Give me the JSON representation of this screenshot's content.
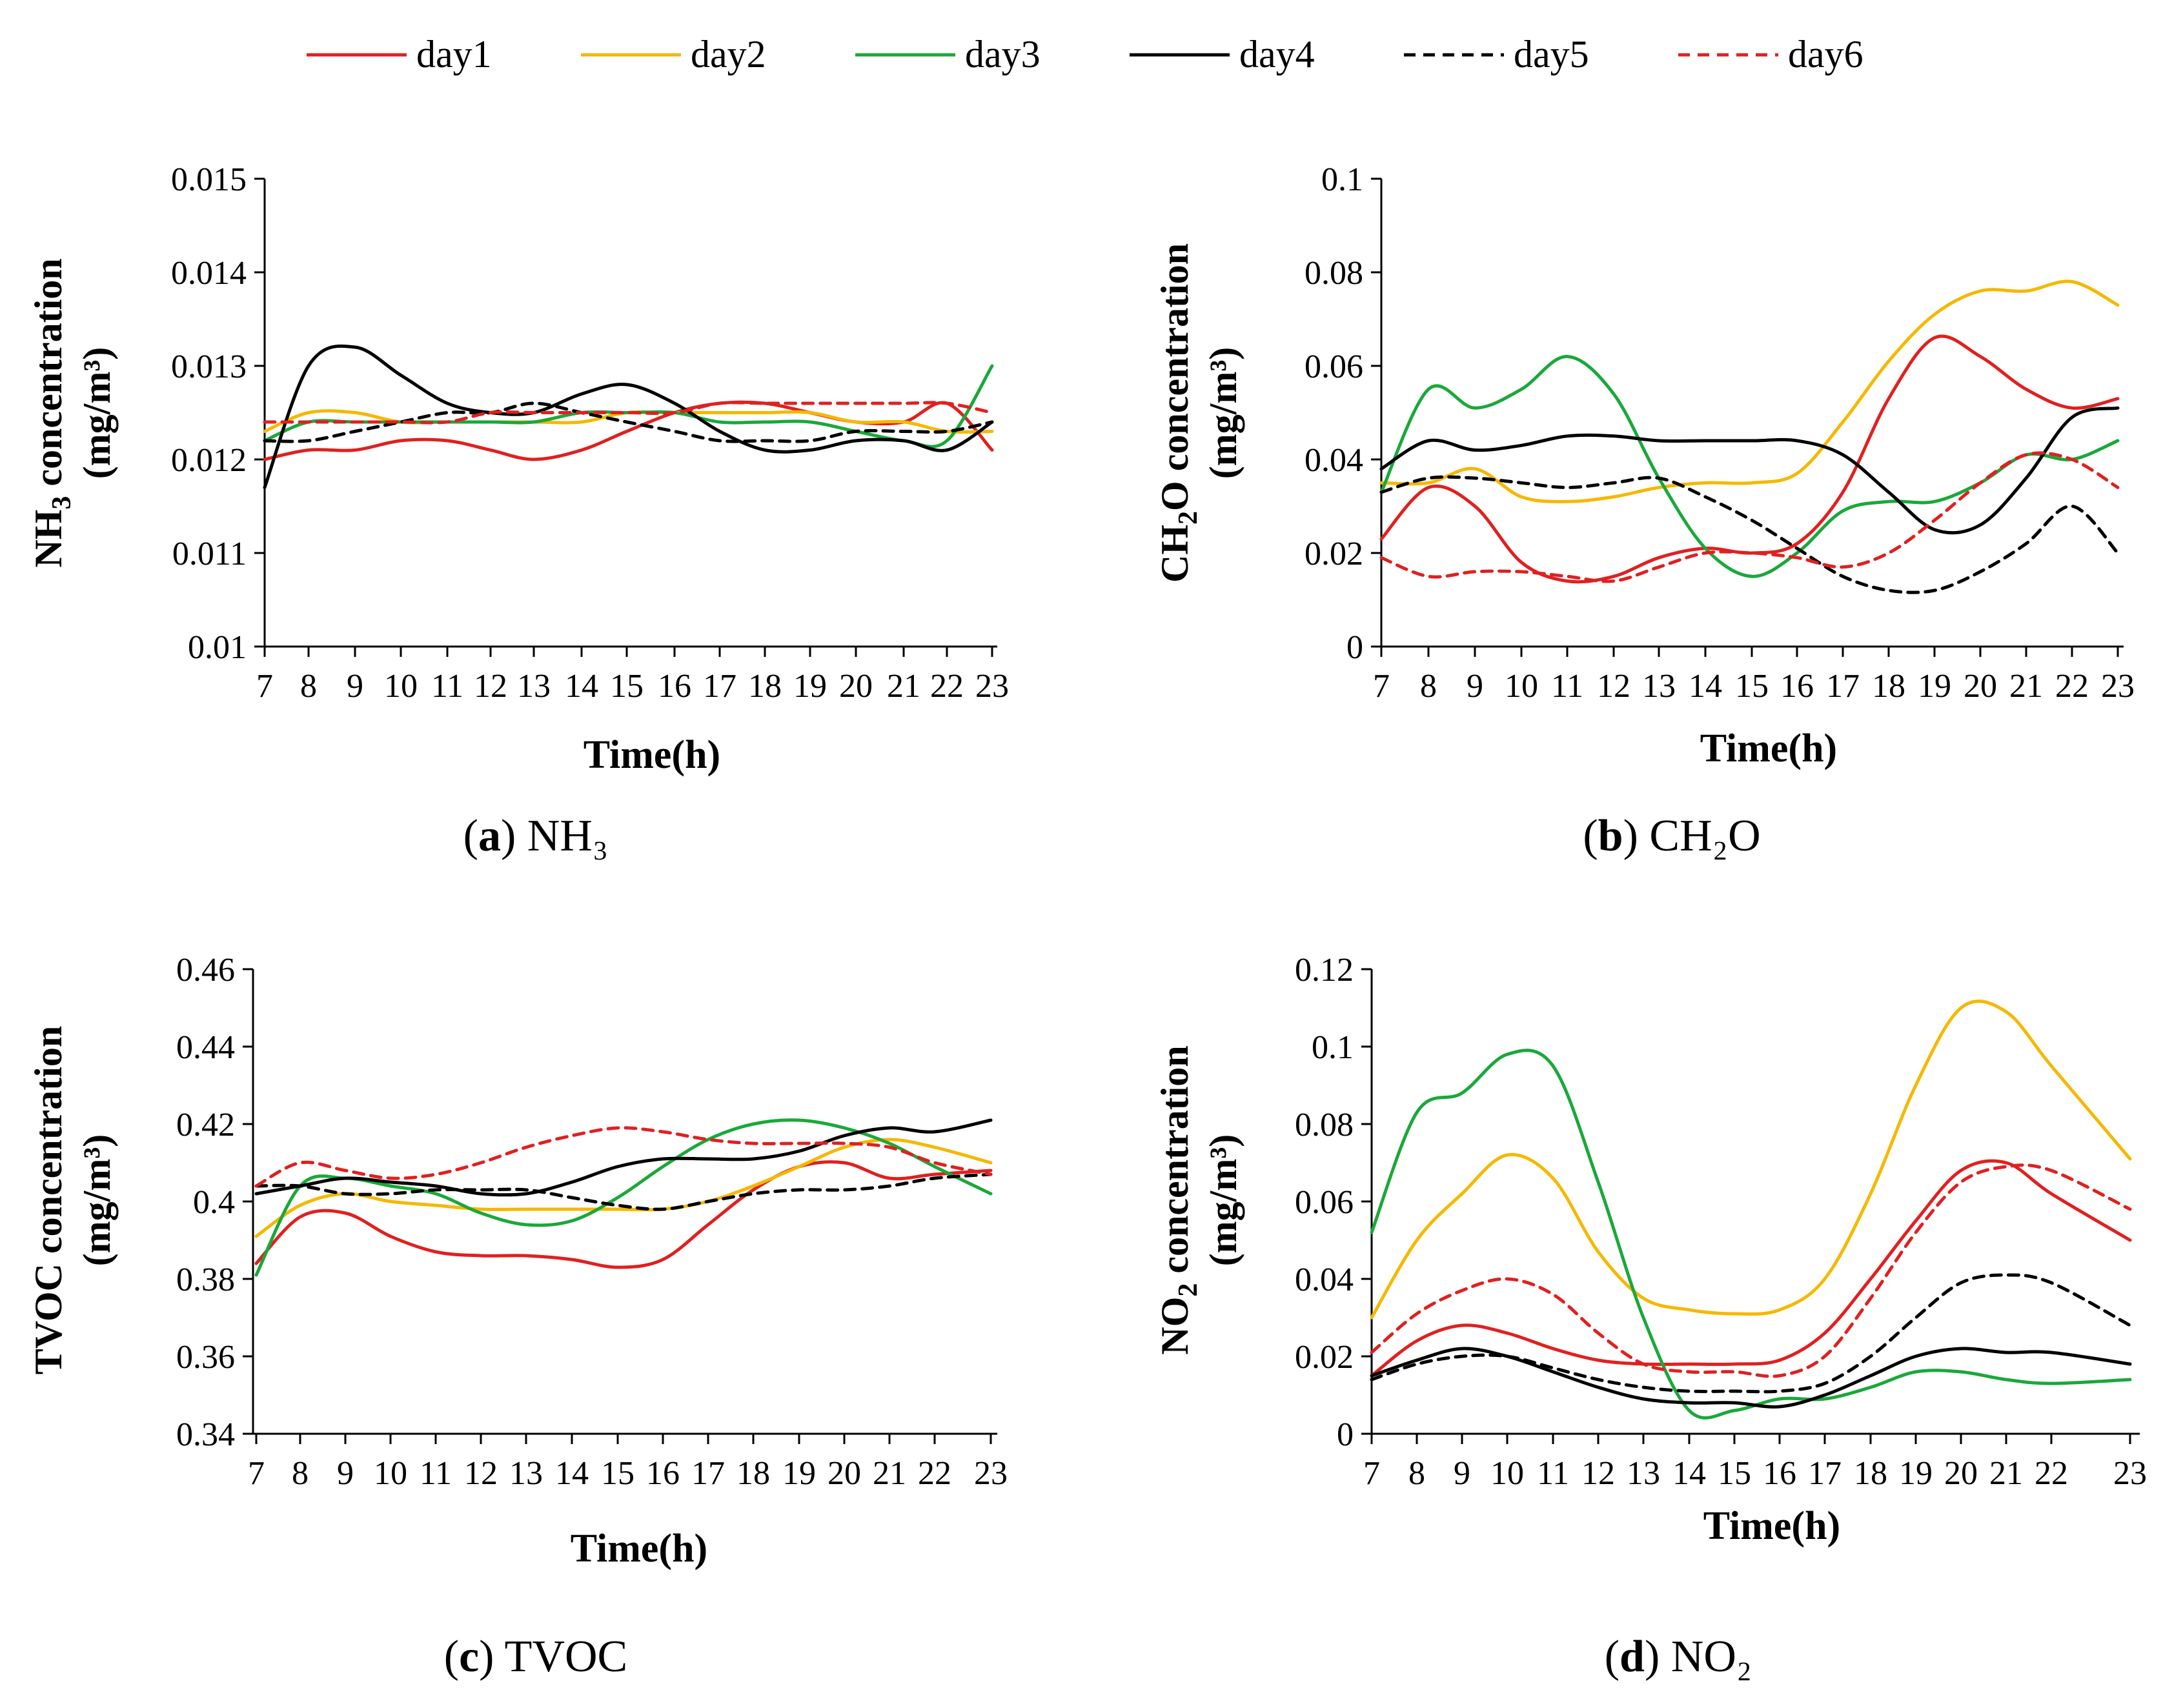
{
  "legend": [
    {
      "name": "day1",
      "color": "#e02020",
      "dash": false
    },
    {
      "name": "day2",
      "color": "#f5b800",
      "dash": false
    },
    {
      "name": "day3",
      "color": "#1aa83a",
      "dash": false
    },
    {
      "name": "day4",
      "color": "#000000",
      "dash": false
    },
    {
      "name": "day5",
      "color": "#000000",
      "dash": true
    },
    {
      "name": "day6",
      "color": "#e02020",
      "dash": true
    }
  ],
  "chart_data": [
    {
      "id": "a",
      "type": "line",
      "caption_letter": "a",
      "caption_text": "NH₃",
      "ylabel": "NH₃ concentration (mg/m³)",
      "ylabel_main": "NH",
      "ylabel_sub": "3",
      "ylabel_rest": " concentration",
      "ylabel_unit": "(mg/m³)",
      "xlabel": "Time(h)",
      "ylim": [
        0.01,
        0.015
      ],
      "yticks": [
        "0.01",
        "0.011",
        "0.012",
        "0.013",
        "0.014",
        "0.015"
      ],
      "xrange": [
        7,
        23
      ],
      "x": [
        7,
        8,
        9,
        10,
        11,
        12,
        13,
        14,
        15,
        16,
        17,
        18,
        19,
        20,
        21,
        22,
        23
      ],
      "series": [
        {
          "name": "day1",
          "values": [
            0.012,
            0.0121,
            0.0121,
            0.0122,
            0.0122,
            0.0121,
            0.012,
            0.0121,
            0.0123,
            0.0125,
            0.0126,
            0.0126,
            0.0125,
            0.0124,
            0.0124,
            0.0126,
            0.0121
          ]
        },
        {
          "name": "day2",
          "values": [
            0.0123,
            0.0125,
            0.0125,
            0.0124,
            0.0124,
            0.0124,
            0.0124,
            0.0124,
            0.0125,
            0.0125,
            0.0125,
            0.0125,
            0.0125,
            0.0124,
            0.0124,
            0.0123,
            0.0123
          ]
        },
        {
          "name": "day3",
          "values": [
            0.0122,
            0.0124,
            0.0124,
            0.0124,
            0.0124,
            0.0124,
            0.0124,
            0.0125,
            0.0125,
            0.0125,
            0.0124,
            0.0124,
            0.0124,
            0.0123,
            0.0122,
            0.0122,
            0.013
          ]
        },
        {
          "name": "day4",
          "values": [
            0.0117,
            0.013,
            0.0132,
            0.0129,
            0.0126,
            0.0125,
            0.0125,
            0.0127,
            0.0128,
            0.0126,
            0.0123,
            0.0121,
            0.0121,
            0.0122,
            0.0122,
            0.0121,
            0.0124
          ]
        },
        {
          "name": "day5",
          "values": [
            0.0122,
            0.0122,
            0.0123,
            0.0124,
            0.0125,
            0.0125,
            0.0126,
            0.0125,
            0.0124,
            0.0123,
            0.0122,
            0.0122,
            0.0122,
            0.0123,
            0.0123,
            0.0123,
            0.0124
          ]
        },
        {
          "name": "day6",
          "values": [
            0.0124,
            0.0124,
            0.0124,
            0.0124,
            0.0124,
            0.0125,
            0.0125,
            0.0125,
            0.0125,
            0.0125,
            0.0126,
            0.0126,
            0.0126,
            0.0126,
            0.0126,
            0.0126,
            0.0125
          ]
        }
      ]
    },
    {
      "id": "b",
      "type": "line",
      "caption_letter": "b",
      "caption_text": "CH₂O",
      "ylabel": "CH₂O concentration (mg/m³)",
      "ylabel_main": "CH",
      "ylabel_sub": "2",
      "ylabel_rest": "O concentration",
      "ylabel_unit": "(mg/m³)",
      "xlabel": "Time(h)",
      "ylim": [
        0,
        0.1
      ],
      "yticks": [
        "0",
        "0.02",
        "0.04",
        "0.06",
        "0.08",
        "0.1"
      ],
      "xrange": [
        7,
        23
      ],
      "x": [
        7,
        8,
        9,
        10,
        11,
        12,
        13,
        14,
        15,
        16,
        17,
        18,
        19,
        20,
        21,
        22,
        23
      ],
      "series": [
        {
          "name": "day1",
          "values": [
            0.023,
            0.034,
            0.03,
            0.018,
            0.014,
            0.015,
            0.019,
            0.021,
            0.02,
            0.022,
            0.033,
            0.053,
            0.066,
            0.062,
            0.055,
            0.051,
            0.053
          ]
        },
        {
          "name": "day2",
          "values": [
            0.035,
            0.035,
            0.038,
            0.032,
            0.031,
            0.032,
            0.034,
            0.035,
            0.035,
            0.037,
            0.048,
            0.061,
            0.071,
            0.076,
            0.076,
            0.078,
            0.073
          ]
        },
        {
          "name": "day3",
          "values": [
            0.033,
            0.055,
            0.051,
            0.055,
            0.062,
            0.054,
            0.036,
            0.021,
            0.015,
            0.02,
            0.029,
            0.031,
            0.031,
            0.035,
            0.041,
            0.04,
            0.044
          ]
        },
        {
          "name": "day4",
          "values": [
            0.038,
            0.044,
            0.042,
            0.043,
            0.045,
            0.045,
            0.044,
            0.044,
            0.044,
            0.044,
            0.041,
            0.033,
            0.025,
            0.026,
            0.036,
            0.049,
            0.051
          ]
        },
        {
          "name": "day5",
          "values": [
            0.033,
            0.036,
            0.036,
            0.035,
            0.034,
            0.035,
            0.036,
            0.032,
            0.027,
            0.021,
            0.015,
            0.012,
            0.012,
            0.016,
            0.022,
            0.03,
            0.02
          ]
        },
        {
          "name": "day6",
          "values": [
            0.019,
            0.015,
            0.016,
            0.016,
            0.015,
            0.014,
            0.017,
            0.02,
            0.02,
            0.019,
            0.017,
            0.02,
            0.027,
            0.035,
            0.041,
            0.04,
            0.034
          ]
        }
      ]
    },
    {
      "id": "c",
      "type": "line",
      "caption_letter": "c",
      "caption_text": "TVOC",
      "ylabel": "TVOC concentration (mg/m³)",
      "ylabel_main": "TVOC concentration",
      "ylabel_sub": "",
      "ylabel_rest": "",
      "ylabel_unit": "(mg/m³)",
      "xlabel": "Time(h)",
      "ylim": [
        0.34,
        0.46
      ],
      "yticks": [
        "0.34",
        "0.36",
        "0.38",
        "0.4",
        "0.42",
        "0.44",
        "0.46"
      ],
      "xrange": [
        7,
        23
      ],
      "x": [
        7,
        8,
        9,
        10,
        11,
        12,
        13,
        14,
        15,
        16,
        17,
        18,
        19,
        20,
        21,
        22,
        23
      ],
      "series": [
        {
          "name": "day1",
          "values": [
            0.384,
            0.396,
            0.397,
            0.391,
            0.387,
            0.386,
            0.386,
            0.385,
            0.383,
            0.385,
            0.394,
            0.403,
            0.409,
            0.41,
            0.406,
            0.407,
            0.408
          ]
        },
        {
          "name": "day2",
          "values": [
            0.391,
            0.399,
            0.402,
            0.4,
            0.399,
            0.398,
            0.398,
            0.398,
            0.398,
            0.398,
            0.4,
            0.404,
            0.409,
            0.414,
            0.416,
            0.414,
            0.41
          ]
        },
        {
          "name": "day3",
          "values": [
            0.381,
            0.404,
            0.406,
            0.404,
            0.402,
            0.397,
            0.394,
            0.395,
            0.401,
            0.409,
            0.416,
            0.42,
            0.421,
            0.419,
            0.415,
            0.409,
            0.402
          ]
        },
        {
          "name": "day4",
          "values": [
            0.402,
            0.404,
            0.406,
            0.405,
            0.404,
            0.402,
            0.402,
            0.405,
            0.409,
            0.411,
            0.411,
            0.411,
            0.413,
            0.417,
            0.419,
            0.418,
            0.421
          ]
        },
        {
          "name": "day5",
          "values": [
            0.404,
            0.404,
            0.402,
            0.402,
            0.403,
            0.403,
            0.403,
            0.401,
            0.399,
            0.398,
            0.4,
            0.402,
            0.403,
            0.403,
            0.404,
            0.406,
            0.407
          ]
        },
        {
          "name": "day6",
          "values": [
            0.404,
            0.41,
            0.408,
            0.406,
            0.407,
            0.41,
            0.414,
            0.417,
            0.419,
            0.418,
            0.416,
            0.415,
            0.415,
            0.415,
            0.414,
            0.41,
            0.407
          ]
        }
      ]
    },
    {
      "id": "d",
      "type": "line",
      "caption_letter": "d",
      "caption_text": "NO₂",
      "ylabel": "NO₂ concentration (mg/m³)",
      "ylabel_main": "NO",
      "ylabel_sub": "2",
      "ylabel_rest": " concentration",
      "ylabel_unit": "(mg/m³)",
      "xlabel": "Time(h)",
      "ylim": [
        0,
        0.12
      ],
      "yticks": [
        "0",
        "0.02",
        "0.04",
        "0.06",
        "0.08",
        "0.1",
        "0.12"
      ],
      "xrange": [
        7,
        23
      ],
      "x": [
        7,
        8,
        9,
        10,
        11,
        12,
        13,
        14,
        15,
        16,
        17,
        18,
        19,
        20,
        21,
        22,
        23
      ],
      "series": [
        {
          "name": "day1",
          "values": [
            0.015,
            0.024,
            0.028,
            0.026,
            0.022,
            0.019,
            0.018,
            0.018,
            0.018,
            0.019,
            0.026,
            0.04,
            0.055,
            0.068,
            0.07,
            0.062,
            0.05
          ]
        },
        {
          "name": "day2",
          "values": [
            0.03,
            0.05,
            0.062,
            0.072,
            0.066,
            0.047,
            0.035,
            0.032,
            0.031,
            0.032,
            0.04,
            0.062,
            0.09,
            0.11,
            0.109,
            0.095,
            0.071
          ]
        },
        {
          "name": "day3",
          "values": [
            0.052,
            0.083,
            0.088,
            0.098,
            0.095,
            0.065,
            0.03,
            0.006,
            0.006,
            0.009,
            0.009,
            0.012,
            0.016,
            0.016,
            0.014,
            0.013,
            0.014
          ]
        },
        {
          "name": "day4",
          "values": [
            0.015,
            0.019,
            0.022,
            0.02,
            0.016,
            0.012,
            0.009,
            0.008,
            0.008,
            0.007,
            0.01,
            0.015,
            0.02,
            0.022,
            0.021,
            0.021,
            0.018
          ]
        },
        {
          "name": "day5",
          "values": [
            0.014,
            0.018,
            0.02,
            0.02,
            0.017,
            0.014,
            0.012,
            0.011,
            0.011,
            0.011,
            0.013,
            0.02,
            0.03,
            0.039,
            0.041,
            0.039,
            0.028
          ]
        },
        {
          "name": "day6",
          "values": [
            0.021,
            0.031,
            0.037,
            0.04,
            0.036,
            0.026,
            0.018,
            0.016,
            0.016,
            0.015,
            0.02,
            0.035,
            0.052,
            0.065,
            0.069,
            0.068,
            0.058
          ]
        }
      ]
    }
  ]
}
